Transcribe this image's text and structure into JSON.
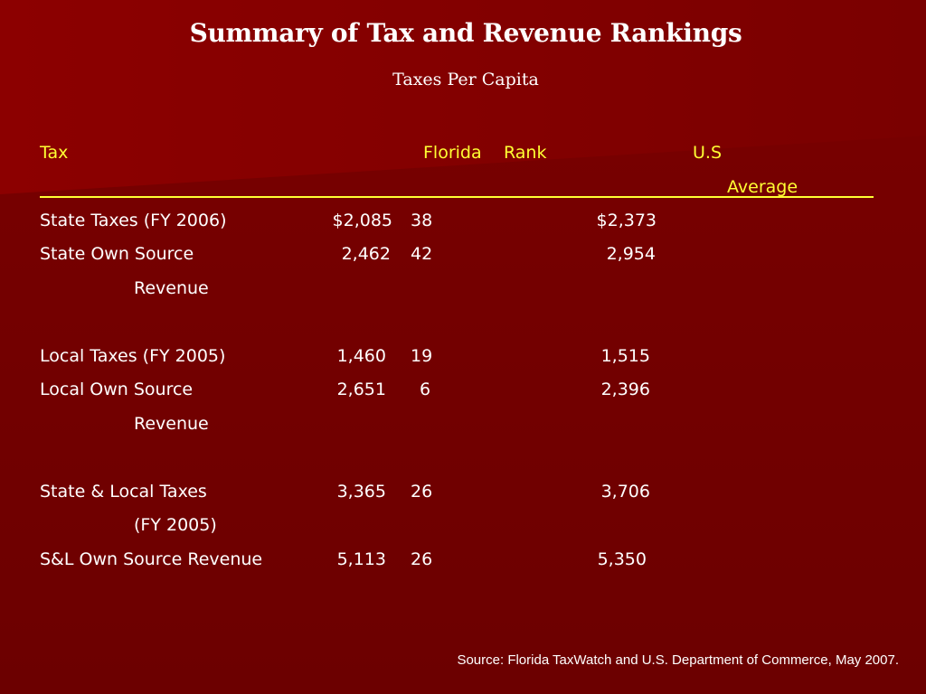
{
  "slide": {
    "title": "Summary of Tax and Revenue Rankings",
    "subtitle": "Taxes Per Capita",
    "source": "Source: Florida TaxWatch and U.S. Department of Commerce, May 2007."
  },
  "table": {
    "headers": {
      "tax": "Tax",
      "florida": "Florida",
      "rank": "Rank",
      "us_line1": "U.S",
      "us_line2": "Average"
    },
    "rows": [
      {
        "label": "State Taxes (FY 2006)",
        "label_cont": "",
        "florida": "$2,085",
        "rank": "38",
        "us": "$2,373"
      },
      {
        "label": "State Own Source",
        "label_cont": "Revenue",
        "florida": "2,462",
        "rank": "42",
        "us": "2,954"
      },
      {
        "label": "Local Taxes (FY 2005)",
        "label_cont": "",
        "florida": "1,460",
        "rank": "19",
        "us": "1,515"
      },
      {
        "label": "Local Own Source",
        "label_cont": "Revenue",
        "florida": "2,651",
        "rank": "6",
        "us": "2,396"
      },
      {
        "label": "State & Local Taxes",
        "label_cont": "(FY 2005)",
        "florida": "3,365",
        "rank": "26",
        "us": "3,706"
      },
      {
        "label": "S&L Own Source Revenue",
        "label_cont": "",
        "florida": "5,113",
        "rank": "26",
        "us": "5,350"
      }
    ]
  },
  "colors": {
    "background": "#6e0000",
    "header_text": "#ffff33",
    "body_text": "#ffffff"
  }
}
